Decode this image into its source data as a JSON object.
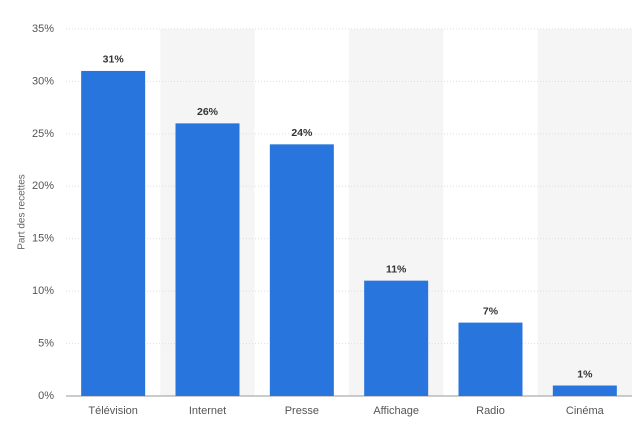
{
  "chart_data": {
    "type": "bar",
    "y_label": "Part des recettes",
    "categories": [
      "Télévision",
      "Internet",
      "Presse",
      "Affichage",
      "Radio",
      "Cinéma"
    ],
    "values": [
      31,
      26,
      24,
      11,
      7,
      1
    ],
    "value_labels": [
      "31%",
      "26%",
      "24%",
      "11%",
      "7%",
      "1%"
    ],
    "color": "#2876dd",
    "ylim": [
      0,
      35
    ],
    "yticks": [
      {
        "value": 0,
        "label": "0%"
      },
      {
        "value": 5,
        "label": "5%"
      },
      {
        "value": 10,
        "label": "10%"
      },
      {
        "value": 15,
        "label": "15%"
      },
      {
        "value": 20,
        "label": "20%"
      },
      {
        "value": 25,
        "label": "25%"
      },
      {
        "value": 30,
        "label": "30%"
      },
      {
        "value": 35,
        "label": "35%"
      }
    ],
    "grid": true
  }
}
